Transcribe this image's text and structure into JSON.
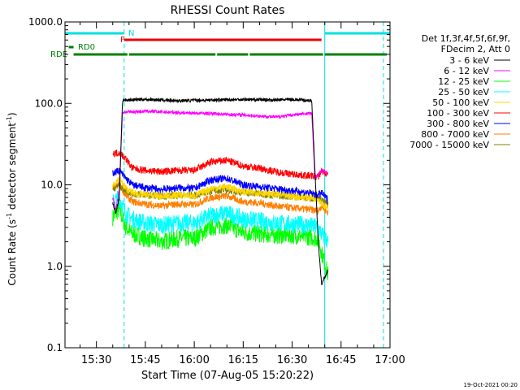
{
  "chart_data": {
    "type": "line",
    "title": "RHESSI Count Rates",
    "xlabel": "Start Time (07-Aug-05 15:20:22)",
    "ylabel_main": "Count Rate (s",
    "ylabel_sup1": "-1",
    "ylabel_mid": " detector segment",
    "ylabel_sup2": "-1",
    "ylabel_end": ")",
    "y_scale": "log",
    "ylim": [
      0.1,
      1000
    ],
    "xlim": [
      "15:20:22",
      "17:00:00"
    ],
    "x_ticks": [
      "15:30",
      "15:45",
      "16:00",
      "16:15",
      "16:30",
      "16:45",
      "17:00"
    ],
    "y_ticks": [
      "0.1",
      "1.0",
      "10.0",
      "100.0",
      "1000.0"
    ],
    "legend_header": [
      "Det 1f,3f,4f,5f,6f,9f,",
      "FDecim 2, Att 0"
    ],
    "series": [
      {
        "name": "3 - 6 keV",
        "color": "#000000",
        "start": "15:35:00",
        "end": "16:42:00",
        "values": [
          [
            0,
            6
          ],
          [
            1,
            4.5
          ],
          [
            2,
            7
          ],
          [
            3,
            110
          ],
          [
            10,
            112
          ],
          [
            20,
            108
          ],
          [
            30,
            110
          ],
          [
            40,
            112
          ],
          [
            50,
            110
          ],
          [
            55,
            112
          ],
          [
            61,
            108
          ],
          [
            63,
            2
          ],
          [
            64,
            0.6
          ],
          [
            66,
            0.9
          ]
        ]
      },
      {
        "name": "6 - 12 keV",
        "color": "#ff00ff",
        "start": "15:35:00",
        "end": "16:42:00",
        "values": [
          [
            0,
            7
          ],
          [
            1,
            5
          ],
          [
            2,
            9
          ],
          [
            3,
            78
          ],
          [
            10,
            80
          ],
          [
            20,
            77
          ],
          [
            30,
            75
          ],
          [
            40,
            72
          ],
          [
            50,
            68
          ],
          [
            55,
            72
          ],
          [
            61,
            76
          ],
          [
            62,
            12
          ],
          [
            64,
            15
          ],
          [
            66,
            14
          ]
        ]
      },
      {
        "name": "12 - 25 keV",
        "color": "#00ff00",
        "start": "15:35:00",
        "end": "16:42:00",
        "values": [
          [
            0,
            4
          ],
          [
            2,
            5
          ],
          [
            4,
            3
          ],
          [
            6,
            2.5
          ],
          [
            10,
            2.2
          ],
          [
            15,
            2
          ],
          [
            20,
            2.2
          ],
          [
            25,
            2.2
          ],
          [
            30,
            3
          ],
          [
            35,
            3.2
          ],
          [
            40,
            2.6
          ],
          [
            45,
            2.5
          ],
          [
            50,
            2.4
          ],
          [
            55,
            2.4
          ],
          [
            60,
            2.3
          ],
          [
            63,
            2.2
          ],
          [
            64,
            1.5
          ],
          [
            66,
            0.8
          ]
        ]
      },
      {
        "name": "25 - 50 keV",
        "color": "#00ffff",
        "start": "15:35:00",
        "end": "16:42:00",
        "values": [
          [
            0,
            6
          ],
          [
            2,
            7
          ],
          [
            4,
            4.5
          ],
          [
            6,
            3.8
          ],
          [
            10,
            3.4
          ],
          [
            15,
            3.2
          ],
          [
            20,
            3.4
          ],
          [
            25,
            3.4
          ],
          [
            30,
            4.2
          ],
          [
            35,
            4.5
          ],
          [
            40,
            3.8
          ],
          [
            45,
            3.6
          ],
          [
            50,
            3.4
          ],
          [
            55,
            3.3
          ],
          [
            60,
            3.2
          ],
          [
            63,
            3
          ],
          [
            64,
            2.5
          ],
          [
            66,
            2
          ]
        ]
      },
      {
        "name": "50 - 100 keV",
        "color": "#ffd700",
        "start": "15:35:00",
        "end": "16:42:00",
        "values": [
          [
            0,
            10
          ],
          [
            2,
            12
          ],
          [
            4,
            9
          ],
          [
            6,
            8
          ],
          [
            10,
            7.5
          ],
          [
            15,
            7.2
          ],
          [
            20,
            7.5
          ],
          [
            25,
            7.3
          ],
          [
            30,
            9
          ],
          [
            35,
            9.5
          ],
          [
            40,
            8.2
          ],
          [
            45,
            8
          ],
          [
            50,
            7.6
          ],
          [
            55,
            7.2
          ],
          [
            60,
            7
          ],
          [
            63,
            6.8
          ],
          [
            64,
            6
          ],
          [
            66,
            5
          ]
        ]
      },
      {
        "name": "100 - 300 keV",
        "color": "#ff0000",
        "start": "15:35:00",
        "end": "16:42:00",
        "values": [
          [
            0,
            24
          ],
          [
            2,
            25
          ],
          [
            4,
            21
          ],
          [
            6,
            16
          ],
          [
            10,
            15
          ],
          [
            15,
            14.5
          ],
          [
            20,
            15
          ],
          [
            25,
            15
          ],
          [
            30,
            19
          ],
          [
            35,
            20
          ],
          [
            40,
            17
          ],
          [
            45,
            16
          ],
          [
            50,
            14.5
          ],
          [
            55,
            13.5
          ],
          [
            60,
            13
          ],
          [
            63,
            12.5
          ],
          [
            64,
            15
          ],
          [
            66,
            13
          ]
        ]
      },
      {
        "name": "300 - 800 keV",
        "color": "#0000ff",
        "start": "15:35:00",
        "end": "16:42:00",
        "values": [
          [
            0,
            14
          ],
          [
            2,
            15
          ],
          [
            4,
            12
          ],
          [
            6,
            10
          ],
          [
            10,
            9.2
          ],
          [
            15,
            8.8
          ],
          [
            20,
            9.2
          ],
          [
            25,
            9
          ],
          [
            30,
            11.5
          ],
          [
            35,
            12
          ],
          [
            40,
            10
          ],
          [
            45,
            9.5
          ],
          [
            50,
            9
          ],
          [
            55,
            8.5
          ],
          [
            60,
            8
          ],
          [
            63,
            7.5
          ],
          [
            64,
            8
          ],
          [
            66,
            6.5
          ]
        ]
      },
      {
        "name": "800 - 7000 keV",
        "color": "#ff8000",
        "start": "15:35:00",
        "end": "16:42:00",
        "values": [
          [
            0,
            9
          ],
          [
            2,
            10
          ],
          [
            4,
            7.5
          ],
          [
            6,
            6.2
          ],
          [
            10,
            5.8
          ],
          [
            15,
            5.5
          ],
          [
            20,
            5.8
          ],
          [
            25,
            5.7
          ],
          [
            30,
            7
          ],
          [
            35,
            7.3
          ],
          [
            40,
            6.2
          ],
          [
            45,
            6
          ],
          [
            50,
            5.5
          ],
          [
            55,
            5.2
          ],
          [
            60,
            5
          ],
          [
            63,
            4.8
          ],
          [
            64,
            5.5
          ],
          [
            66,
            4.5
          ]
        ]
      },
      {
        "name": "7000 - 15000 keV",
        "color": "#808000",
        "start": "15:35:00",
        "end": "16:42:00",
        "values": [
          [
            0,
            9
          ],
          [
            2,
            10
          ],
          [
            4,
            8.5
          ],
          [
            6,
            7.8
          ],
          [
            10,
            7.5
          ],
          [
            15,
            7.3
          ],
          [
            20,
            7.5
          ],
          [
            25,
            7.4
          ],
          [
            30,
            8.5
          ],
          [
            35,
            8.7
          ],
          [
            40,
            8
          ],
          [
            45,
            7.8
          ],
          [
            50,
            7.4
          ],
          [
            55,
            7.2
          ],
          [
            60,
            7
          ],
          [
            63,
            6.8
          ],
          [
            64,
            6.5
          ],
          [
            66,
            5.5
          ]
        ]
      }
    ],
    "vlines": [
      {
        "t": "15:20:22",
        "color": "#00e0e0",
        "style": "solid"
      },
      {
        "t": "15:38:30",
        "color": "#00e0e0",
        "style": "dashed"
      },
      {
        "t": "16:40:00",
        "color": "#00e0e0",
        "style": "solid"
      },
      {
        "t": "16:58:00",
        "color": "#00e0e0",
        "style": "dashed"
      }
    ],
    "flag_bars": [
      {
        "label": "N",
        "color": "#00e0e0",
        "segments": [
          [
            "15:20:22",
            "15:38:30"
          ],
          [
            "16:40:00",
            "17:00:00"
          ]
        ]
      },
      {
        "label": "F",
        "color": "#ee0000",
        "segments": [
          [
            "15:38:30",
            "16:39:00"
          ]
        ]
      },
      {
        "label": "RD0",
        "color": "#007f00",
        "segments": [
          [
            "15:21:30",
            "15:23:00"
          ]
        ]
      },
      {
        "label": "RDE",
        "color": "#007f00",
        "segments": [
          [
            "15:23:00",
            "15:39:30"
          ],
          [
            "15:40:00",
            "16:06:30"
          ],
          [
            "16:07:00",
            "16:16:30"
          ],
          [
            "16:17:00",
            "16:39:30"
          ],
          [
            "16:40:00",
            "16:59:00"
          ]
        ]
      }
    ],
    "footer_date": "19-Oct-2021 00:20"
  }
}
